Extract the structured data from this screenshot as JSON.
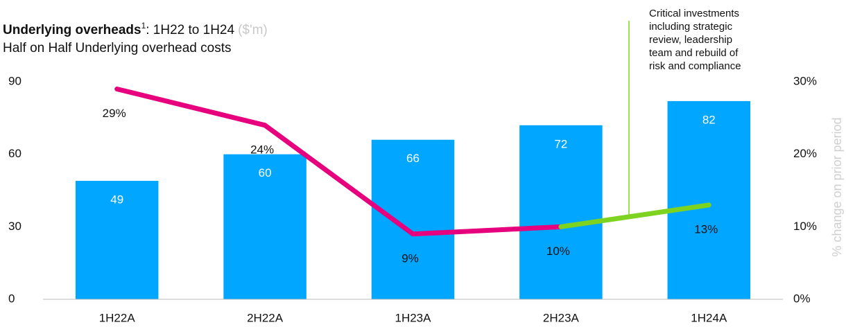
{
  "chart_data": {
    "type": "bar_line",
    "title": "Underlying overheads",
    "title_footnote": "1",
    "title_rest": ": 1H22 to 1H24",
    "title_unit": "($'m)",
    "subtitle": "Half on Half Underlying overhead costs",
    "y2_label": "% change on prior period",
    "categories": [
      "1H22A",
      "2H22A",
      "1H23A",
      "2H23A",
      "1H24A"
    ],
    "series": [
      {
        "name": "Underlying overhead costs",
        "type": "bar",
        "color": "#00a6ff",
        "label_color": "#ffffff",
        "values": [
          49,
          60,
          66,
          72,
          82
        ]
      },
      {
        "name": "% change on prior period",
        "type": "line",
        "axis": "y2",
        "color": "#e6007e",
        "segment_colors": [
          "#e6007e",
          "#e6007e",
          "#e6007e",
          "#7ed321"
        ],
        "values": [
          29,
          24,
          9,
          10,
          13
        ],
        "value_labels": [
          "29%",
          "24%",
          "9%",
          "10%",
          "13%"
        ]
      }
    ],
    "ylim": [
      0,
      90
    ],
    "yticks": [
      0,
      30,
      60,
      90
    ],
    "y2lim": [
      0,
      30
    ],
    "y2ticks": [
      {
        "value": 0,
        "label": "0%"
      },
      {
        "value": 10,
        "label": "10%"
      },
      {
        "value": 20,
        "label": "20%"
      },
      {
        "value": 30,
        "label": "30%"
      }
    ],
    "annotation": {
      "lines": [
        "Critical investments",
        "including strategic",
        "review, leadership",
        "team and rebuild of",
        "risk and compliance"
      ],
      "color": "#7ed321"
    }
  }
}
